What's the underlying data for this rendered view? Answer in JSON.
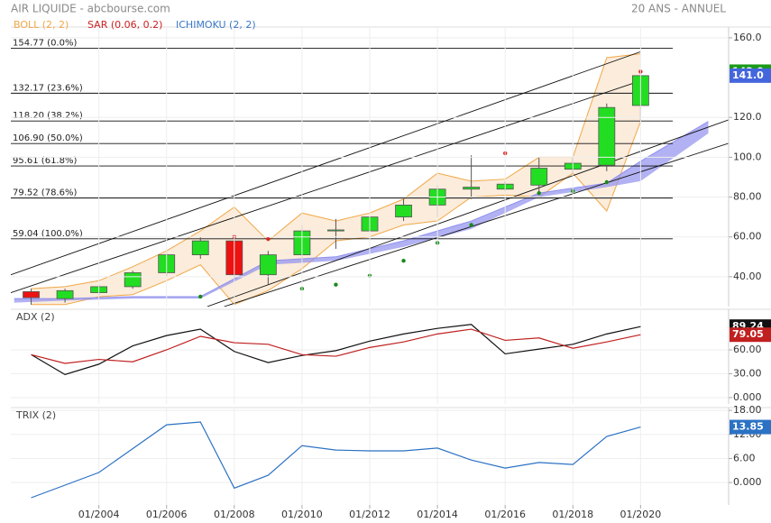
{
  "chart_data": [
    {
      "type": "candlestick",
      "title": "AIR LIQUIDE - abcbourse.com",
      "subtitle": "20 ANS - ANNUEL",
      "x": [
        2002,
        2003,
        2004,
        2005,
        2006,
        2007,
        2008,
        2009,
        2010,
        2011,
        2012,
        2013,
        2014,
        2015,
        2016,
        2017,
        2018,
        2019,
        2020
      ],
      "open": [
        32.5,
        29,
        32,
        35,
        42,
        51,
        58,
        41,
        51,
        63,
        63,
        70,
        76,
        84,
        84,
        86,
        94,
        96,
        126
      ],
      "high": [
        34,
        34,
        36,
        43,
        52,
        60,
        61,
        53,
        66,
        69,
        72,
        79,
        86,
        101,
        88,
        100,
        100,
        127,
        144
      ],
      "low": [
        26,
        27,
        31,
        34,
        40,
        49,
        38,
        36,
        48,
        54,
        61,
        68,
        70,
        79,
        83,
        82,
        91,
        93,
        118
      ],
      "close": [
        29.5,
        33,
        35,
        42,
        51,
        58,
        41,
        51,
        63,
        63.5,
        70,
        76,
        84,
        85,
        86.5,
        94.5,
        97,
        125,
        141
      ],
      "up_color": "#22dd22",
      "down_color": "#ee1111",
      "xlim": [
        2001.4,
        2022.6
      ],
      "ylim": [
        25,
        165.4
      ],
      "yticks": [
        {
          "value": 40,
          "label": "40.00"
        },
        {
          "value": 60,
          "label": "60.00"
        },
        {
          "value": 80,
          "label": "80.00"
        },
        {
          "value": 100,
          "label": "100.0"
        },
        {
          "value": 120,
          "label": "120.0"
        },
        {
          "value": 160,
          "label": "160.0"
        }
      ],
      "grid": true,
      "bollinger": {
        "name": "BOLL (2, 2)",
        "color": "#f0a848",
        "fill": "#fbe6cf",
        "upper": [
          34,
          35,
          38,
          45,
          53,
          63,
          75,
          58,
          72,
          68,
          72,
          79,
          92,
          88,
          89,
          100,
          100,
          150,
          152
        ],
        "lower": [
          26,
          26,
          30,
          31,
          38,
          46,
          26,
          33,
          44,
          58,
          60,
          66,
          68,
          80,
          81,
          80,
          92,
          73,
          118
        ]
      },
      "sar": {
        "name": "SAR (0.06, 0.2)",
        "color": "#cc2222",
        "x": [
          2007,
          2008,
          2009,
          2010,
          2011,
          2012,
          2013,
          2014,
          2015,
          2016,
          2017,
          2018,
          2019,
          2020
        ],
        "values": [
          30,
          60,
          59,
          34,
          36,
          40.5,
          48,
          57,
          66,
          102,
          82,
          83,
          87.5,
          143
        ],
        "point_colors": [
          "#1a8a1a",
          "#dd2222",
          "#dd2222",
          "#1a8a1a",
          "#1a8a1a",
          "#1a8a1a",
          "#1a8a1a",
          "#1a8a1a",
          "#1a8a1a",
          "#dd2222",
          "#1a8a1a",
          "#1a8a1a",
          "#1a8a1a",
          "#dd2222"
        ]
      },
      "ichimoku": {
        "name": "ICHIMOKU (2, 2)",
        "color": "#3a78c8",
        "fill": "#9090ee",
        "x": [
          2001.5,
          2003,
          2005,
          2007,
          2009,
          2011,
          2013,
          2015,
          2017,
          2019,
          2020,
          2021,
          2022
        ],
        "span_a": [
          29,
          29,
          30,
          30,
          48,
          50,
          58,
          68,
          82,
          87,
          98,
          108,
          118
        ],
        "span_b": [
          27,
          28,
          29,
          29,
          46,
          48,
          55,
          64,
          80,
          85,
          88,
          100,
          112
        ]
      },
      "fibonacci": [
        {
          "value": 154.77,
          "label": "154.77 (0.0%)"
        },
        {
          "value": 132.17,
          "label": "132.17 (23.6%)"
        },
        {
          "value": 118.2,
          "label": "118.20 (38.2%)"
        },
        {
          "value": 106.9,
          "label": "106.90 (50.0%)"
        },
        {
          "value": 95.61,
          "label": "95.61 (61.8%)"
        },
        {
          "value": 79.52,
          "label": "79.52 (78.6%)"
        },
        {
          "value": 59.04,
          "label": "59.04 (100.0%)"
        }
      ],
      "fib_end": 2020.95,
      "trendlines": [
        {
          "x": [
            2001.4,
            2020
          ],
          "values": [
            41,
            153
          ]
        },
        {
          "x": [
            2001.4,
            2020.1
          ],
          "values": [
            32,
            139
          ]
        },
        {
          "x": [
            2007.2,
            2022.6
          ],
          "values": [
            25,
            118.8
          ]
        },
        {
          "x": [
            2007.7,
            2022.6
          ],
          "values": [
            25,
            107
          ]
        }
      ],
      "price_labels": [
        {
          "value": 143,
          "label": "143.0",
          "color": "#1a9a1a"
        },
        {
          "value": 141,
          "label": "141.0",
          "color": "#4466dd"
        }
      ]
    },
    {
      "type": "line",
      "title": "ADX (2)",
      "x": [
        2002,
        2003,
        2004,
        2005,
        2006,
        2007,
        2008,
        2009,
        2010,
        2011,
        2012,
        2013,
        2014,
        2015,
        2016,
        2017,
        2018,
        2019,
        2020
      ],
      "series": [
        {
          "color": "#111111",
          "values": [
            54,
            29,
            42,
            65,
            78,
            86,
            58,
            44,
            53,
            59,
            71,
            80,
            87,
            92,
            55,
            61,
            67,
            80,
            89.24
          ]
        },
        {
          "color": "#c02020",
          "values": [
            54,
            43,
            48,
            45,
            60,
            77,
            69,
            67,
            54,
            52,
            63,
            70,
            80,
            86,
            72,
            75,
            62,
            70,
            79.05
          ]
        }
      ],
      "xlim": [
        2001.4,
        2022.6
      ],
      "ylim": [
        -8,
        111
      ],
      "yticks": [
        {
          "value": 0,
          "label": "0.000"
        },
        {
          "value": 30,
          "label": "30.00"
        },
        {
          "value": 60,
          "label": "60.00"
        }
      ],
      "grid": true
    },
    {
      "type": "line",
      "title": "TRIX (2)",
      "x": [
        2002,
        2004,
        2006,
        2007,
        2008,
        2009,
        2010,
        2011,
        2012,
        2013,
        2014,
        2015,
        2016,
        2017,
        2018,
        2019,
        2020
      ],
      "series": [
        {
          "color": "#2b72c4",
          "values": [
            -3.8,
            2.5,
            14.4,
            15.1,
            -1.4,
            1.8,
            9.2,
            8.1,
            7.9,
            7.9,
            8.6,
            5.6,
            3.6,
            5.0,
            4.5,
            11.5,
            13.85
          ]
        }
      ],
      "xlim": [
        2001.4,
        2022.6
      ],
      "ylim": [
        -5.6,
        18.7
      ],
      "yticks": [
        {
          "value": 0,
          "label": "0.000"
        },
        {
          "value": 6,
          "label": "6.00"
        },
        {
          "value": 12,
          "label": "12.00"
        },
        {
          "value": 18,
          "label": "18.00"
        }
      ],
      "xticks": [
        {
          "value": 2004,
          "label": "01/2004"
        },
        {
          "value": 2006,
          "label": "01/2006"
        },
        {
          "value": 2008,
          "label": "01/2008"
        },
        {
          "value": 2010,
          "label": "01/2010"
        },
        {
          "value": 2012,
          "label": "01/2012"
        },
        {
          "value": 2014,
          "label": "01/2014"
        },
        {
          "value": 2016,
          "label": "01/2016"
        },
        {
          "value": 2018,
          "label": "01/2018"
        },
        {
          "value": 2020,
          "label": "01/2020"
        }
      ],
      "grid": true
    }
  ]
}
